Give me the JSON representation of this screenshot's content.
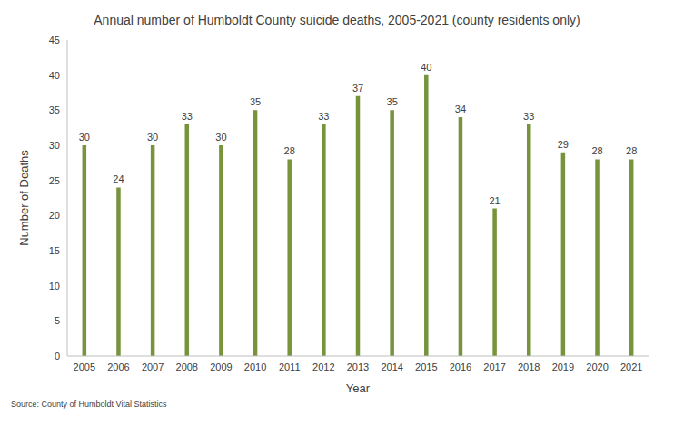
{
  "chart_data": {
    "type": "bar",
    "title": "Annual number of Humboldt County suicide deaths, 2005-2021 (county residents only)",
    "x_label": "Year",
    "y_label": "Number of Deaths",
    "source": "Source: County of Humboldt Vital Statistics",
    "categories": [
      "2005",
      "2006",
      "2007",
      "2008",
      "2009",
      "2010",
      "2011",
      "2012",
      "2013",
      "2014",
      "2015",
      "2016",
      "2017",
      "2018",
      "2019",
      "2020",
      "2021"
    ],
    "values": [
      30,
      24,
      30,
      33,
      30,
      35,
      28,
      33,
      37,
      35,
      40,
      34,
      21,
      33,
      29,
      28,
      28
    ],
    "color": "#77933c",
    "ylim": [
      0,
      45
    ],
    "yticks": [
      0,
      5,
      10,
      15,
      20,
      25,
      30,
      35,
      40,
      45
    ],
    "grid": false,
    "data_labels": true
  }
}
